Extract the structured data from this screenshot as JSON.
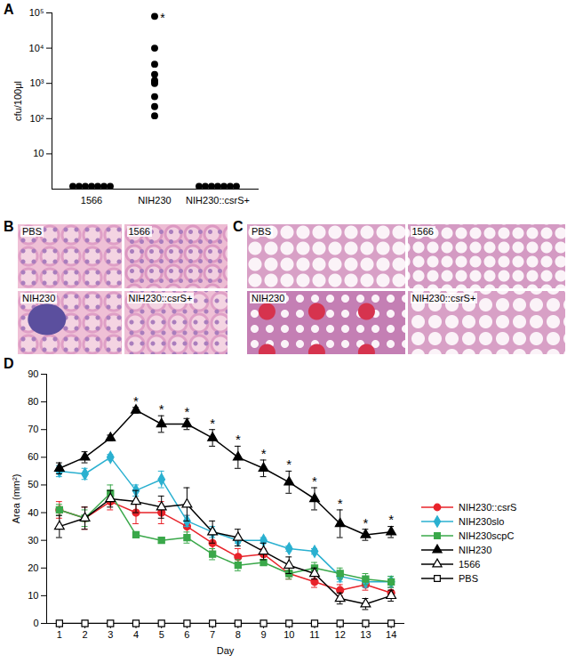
{
  "chart_data": [
    {
      "title": "A",
      "type": "scatter",
      "categories": [
        "1566",
        "NIH230",
        "NIH230::csrS+"
      ],
      "values": [
        [
          1.2,
          1.2,
          1.2,
          1.2,
          1.2,
          1.2,
          1.2
        ],
        [
          80000,
          10000,
          3500,
          1800,
          1200,
          1100,
          1000,
          420,
          220,
          120
        ],
        [
          1.2,
          1.2,
          1.2,
          1.2,
          1.2,
          1.2,
          1.2
        ]
      ],
      "medians": [
        null,
        1100,
        null
      ],
      "color": "#000000",
      "marker": "circle",
      "log": "y",
      "ylim": [
        1,
        100000
      ],
      "yticks": [
        10,
        {
          "value": 100,
          "label": "10²"
        },
        {
          "value": 1000,
          "label": "10³"
        },
        {
          "value": 10000,
          "label": "10⁴"
        },
        {
          "value": 100000,
          "label": "10⁵"
        }
      ],
      "ylabel": "cfu/100μl",
      "annotations": [
        {
          "text": "*",
          "category": "NIH230",
          "value": 80000
        }
      ]
    },
    {
      "title": "D",
      "type": "line",
      "x": [
        1,
        2,
        3,
        4,
        5,
        6,
        7,
        8,
        9,
        10,
        11,
        12,
        13,
        14
      ],
      "xlim": [
        0.5,
        14.5
      ],
      "xticks": [
        1,
        2,
        3,
        4,
        5,
        6,
        7,
        8,
        9,
        10,
        11,
        12,
        13,
        14
      ],
      "ylim": [
        0,
        90
      ],
      "yticks": [
        0,
        10,
        20,
        30,
        40,
        50,
        60,
        70,
        80,
        90
      ],
      "xlabel": "Day",
      "ylabel": "Area (mm²)",
      "legend": "right",
      "series": [
        {
          "name": "NIH230::csrS",
          "color": "#e8232a",
          "marker": "circle",
          "values": [
            41,
            38,
            44,
            40,
            40,
            35,
            29,
            24,
            25,
            18,
            15,
            12,
            14,
            11
          ],
          "errors": [
            3,
            4,
            3,
            4,
            4,
            4,
            3,
            3,
            2,
            2,
            2,
            2,
            2,
            2
          ]
        },
        {
          "name": "NIH230slo",
          "color": "#2ab0d0",
          "marker": "diamond",
          "values": [
            55,
            54,
            60,
            48,
            52,
            37,
            33,
            30,
            30,
            27,
            26,
            17,
            15,
            15
          ],
          "errors": [
            2,
            2,
            1,
            2,
            3,
            2,
            2,
            1,
            1,
            1,
            1,
            2,
            2,
            2
          ]
        },
        {
          "name": "NIH230scpC",
          "color": "#3aa84a",
          "marker": "square",
          "values": [
            41,
            38,
            47,
            32,
            30,
            31,
            25,
            21,
            22,
            18,
            20,
            18,
            16,
            15
          ],
          "errors": [
            2,
            3,
            3,
            1,
            1,
            2,
            2,
            2,
            1,
            2,
            2,
            2,
            2,
            2
          ]
        },
        {
          "name": "NIH230",
          "color": "#000000",
          "marker": "triangle",
          "values": [
            56,
            60,
            67,
            77,
            72,
            72,
            67,
            60,
            56,
            51,
            45,
            36,
            32,
            33
          ],
          "errors": [
            2,
            2,
            1,
            1,
            3,
            2,
            3,
            4,
            3,
            4,
            4,
            5,
            2,
            2
          ]
        },
        {
          "name": "1566",
          "color": "#000000",
          "marker": "triangle_open",
          "values": [
            35,
            38,
            45,
            44,
            42,
            43,
            33,
            31,
            26,
            21,
            18,
            9,
            7,
            10
          ],
          "errors": [
            4,
            4,
            3,
            4,
            4,
            6,
            4,
            3,
            3,
            3,
            2,
            2,
            2,
            2
          ]
        },
        {
          "name": "PBS",
          "color": "#000000",
          "marker": "square_open",
          "values": [
            0,
            0,
            0,
            0,
            0,
            0,
            0,
            0,
            0,
            0,
            0,
            0,
            0,
            0
          ],
          "errors": [
            0,
            0,
            0,
            0,
            0,
            0,
            0,
            0,
            0,
            0,
            0,
            0,
            0,
            0
          ]
        }
      ],
      "annotations": [
        {
          "text": "*",
          "series": "NIH230",
          "x": [
            4,
            5,
            6,
            7,
            8,
            9,
            10,
            11,
            12,
            13,
            14
          ]
        }
      ]
    }
  ],
  "images": [
    {
      "panel": "B",
      "labels": [
        "PBS",
        "1566",
        "NIH230",
        "NIH230::csrS+"
      ]
    },
    {
      "panel": "C",
      "labels": [
        "PBS",
        "1566",
        "NIH230",
        "NIH230::csrS+"
      ]
    }
  ]
}
